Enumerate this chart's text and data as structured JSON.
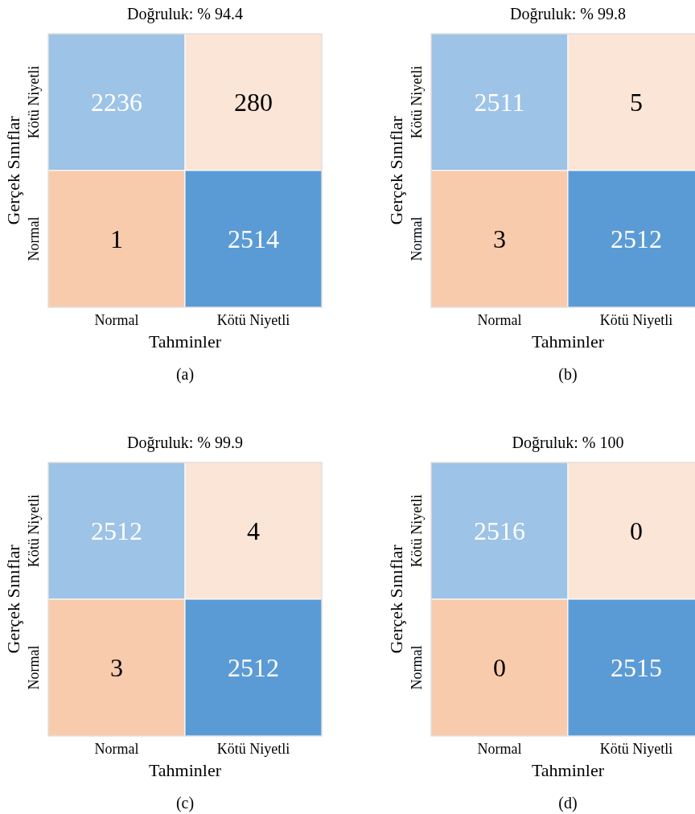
{
  "chart_data": [
    {
      "type": "heatmap",
      "title": "Doğruluk: % 94.4",
      "xlabel": "Tahminler",
      "ylabel": "Gerçek Sınıflar",
      "categories": [
        "Normal",
        "Kötü Niyetli"
      ],
      "y_categories": [
        "Kötü Niyetli",
        "Normal"
      ],
      "cells": [
        [
          2236,
          280
        ],
        [
          1,
          2514
        ]
      ],
      "data_labels": true,
      "colors": [
        [
          "#9dc3e6",
          "#fbe5d6"
        ],
        [
          "#f8cbad",
          "#5b9bd5"
        ]
      ],
      "annotations": [
        "(a)"
      ]
    },
    {
      "type": "heatmap",
      "title": "Doğruluk: % 99.8",
      "xlabel": "Tahminler",
      "ylabel": "Gerçek Sınıflar",
      "categories": [
        "Normal",
        "Kötü Niyetli"
      ],
      "y_categories": [
        "Kötü Niyetli",
        "Normal"
      ],
      "cells": [
        [
          2511,
          5
        ],
        [
          3,
          2512
        ]
      ],
      "data_labels": true,
      "colors": [
        [
          "#9dc3e6",
          "#fbe5d6"
        ],
        [
          "#f8cbad",
          "#5b9bd5"
        ]
      ],
      "annotations": [
        "(b)"
      ]
    },
    {
      "type": "heatmap",
      "title": "Doğruluk: % 99.9",
      "xlabel": "Tahminler",
      "ylabel": "Gerçek Sınıflar",
      "categories": [
        "Normal",
        "Kötü Niyetli"
      ],
      "y_categories": [
        "Kötü Niyetli",
        "Normal"
      ],
      "cells": [
        [
          2512,
          4
        ],
        [
          3,
          2512
        ]
      ],
      "data_labels": true,
      "colors": [
        [
          "#9dc3e6",
          "#fbe5d6"
        ],
        [
          "#f8cbad",
          "#5b9bd5"
        ]
      ],
      "annotations": [
        "(c)"
      ]
    },
    {
      "type": "heatmap",
      "title": "Doğruluk: % 100",
      "xlabel": "Tahminler",
      "ylabel": "Gerçek Sınıflar",
      "categories": [
        "Normal",
        "Kötü Niyetli"
      ],
      "y_categories": [
        "Kötü Niyetli",
        "Normal"
      ],
      "cells": [
        [
          2516,
          0
        ],
        [
          0,
          2515
        ]
      ],
      "data_labels": true,
      "colors": [
        [
          "#9dc3e6",
          "#fbe5d6"
        ],
        [
          "#f8cbad",
          "#5b9bd5"
        ]
      ],
      "annotations": [
        "(d)"
      ]
    }
  ]
}
